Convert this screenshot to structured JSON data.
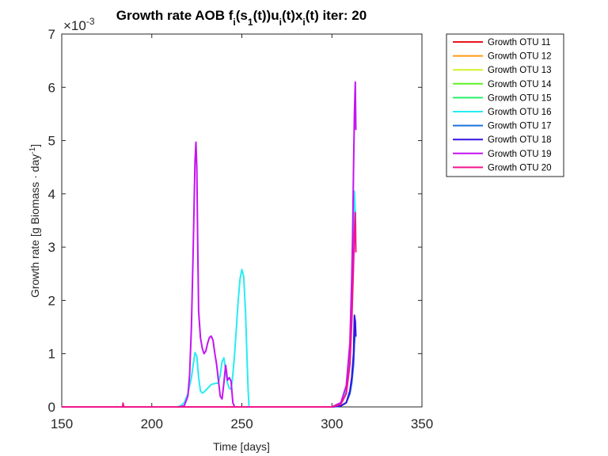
{
  "chart_data": {
    "type": "line",
    "title": {
      "parts": [
        {
          "t": "Growth rate AOB f",
          "sub": false
        },
        {
          "t": "i",
          "sub": true
        },
        {
          "t": "(s",
          "sub": false
        },
        {
          "t": "1",
          "sub": true
        },
        {
          "t": "(t))u",
          "sub": false
        },
        {
          "t": "i",
          "sub": true
        },
        {
          "t": "(t)x",
          "sub": false
        },
        {
          "t": "i",
          "sub": true
        },
        {
          "t": "(t) iter: 20",
          "sub": false
        }
      ]
    },
    "xlabel": "Time [days]",
    "ylabel": {
      "main": "Growth rate [g Biomass · day",
      "sup": "-1",
      "end": "]"
    },
    "xlim": [
      150,
      350
    ],
    "ylim": [
      0,
      7
    ],
    "xticks": [
      "150",
      "200",
      "250",
      "300",
      "350"
    ],
    "yticks": [
      "0",
      "1",
      "2",
      "3",
      "4",
      "5",
      "6",
      "7"
    ],
    "y_multiplier": {
      "base": "×10",
      "exp": "-3"
    },
    "legend_position": "outside-top-right",
    "series": [
      {
        "name": "Growth OTU 11",
        "color": "#e8141c",
        "x": [],
        "y": []
      },
      {
        "name": "Growth OTU 12",
        "color": "#ff9a10",
        "x": [],
        "y": []
      },
      {
        "name": "Growth OTU 13",
        "color": "#d2f229",
        "x": [],
        "y": []
      },
      {
        "name": "Growth OTU 14",
        "color": "#5cf227",
        "x": [],
        "y": []
      },
      {
        "name": "Growth OTU 15",
        "color": "#27f26a",
        "x": [],
        "y": []
      },
      {
        "name": "Growth OTU 16",
        "color": "#27ecf2",
        "x": [
          150,
          214,
          216,
          218,
          220,
          222,
          223,
          224,
          225,
          226,
          227,
          228,
          229,
          231,
          233,
          235,
          237,
          238,
          239,
          240,
          241,
          242,
          243,
          244,
          245,
          246,
          247,
          248,
          249,
          250,
          251,
          252,
          253,
          253.5,
          254,
          300,
          305,
          308,
          310,
          311,
          312,
          312.5,
          313
        ],
        "y": [
          0,
          0,
          0.02,
          0.08,
          0.25,
          0.55,
          0.8,
          1.02,
          0.95,
          0.55,
          0.3,
          0.26,
          0.28,
          0.35,
          0.42,
          0.44,
          0.45,
          0.6,
          0.85,
          0.92,
          0.7,
          0.45,
          0.35,
          0.33,
          0.6,
          1.0,
          1.5,
          2.0,
          2.4,
          2.58,
          2.45,
          1.8,
          0.8,
          0.3,
          0,
          0,
          0.08,
          0.3,
          1.0,
          2.0,
          3.2,
          4.05,
          3.6
        ]
      },
      {
        "name": "Growth OTU 17",
        "color": "#1a6fdf",
        "x": [
          150,
          300,
          305,
          308,
          310,
          311,
          312,
          312.5,
          313
        ],
        "y": [
          0,
          0,
          0.02,
          0.08,
          0.25,
          0.45,
          0.8,
          1.2,
          1.4
        ]
      },
      {
        "name": "Growth OTU 18",
        "color": "#3214e2",
        "x": [
          150,
          300,
          305,
          308,
          310,
          311,
          312,
          312.5,
          313,
          313.3
        ],
        "y": [
          0,
          0,
          0.02,
          0.08,
          0.3,
          0.55,
          1.0,
          1.72,
          1.6,
          1.32
        ]
      },
      {
        "name": "Growth OTU 19",
        "color": "#c414f2",
        "x": [
          150,
          215,
          218,
          220,
          221,
          222,
          223,
          224,
          224.5,
          225,
          225.5,
          226,
          227,
          228,
          229,
          230,
          231,
          232,
          233,
          234,
          235,
          236,
          237,
          238,
          239,
          240,
          241,
          241.5,
          242,
          243,
          244,
          245,
          246,
          300,
          305,
          308,
          310,
          311,
          311.5,
          312,
          312.5,
          313,
          313.3
        ],
        "y": [
          0,
          0,
          0.02,
          0.2,
          0.6,
          1.5,
          3.0,
          4.6,
          4.97,
          4.5,
          3.0,
          1.8,
          1.3,
          1.1,
          1.0,
          1.05,
          1.2,
          1.3,
          1.33,
          1.25,
          1.0,
          0.8,
          0.5,
          0.2,
          0.15,
          0.45,
          0.78,
          0.65,
          0.5,
          0.55,
          0.48,
          0.08,
          0,
          0,
          0.08,
          0.4,
          1.2,
          2.4,
          3.2,
          4.5,
          5.5,
          6.1,
          5.2
        ]
      },
      {
        "name": "Growth OTU 20",
        "color": "#f2148c",
        "x": [
          150,
          183.8,
          184,
          184.4,
          300,
          305,
          308,
          310,
          311,
          312,
          312.5,
          313,
          313.3
        ],
        "y": [
          0,
          0,
          0.07,
          0,
          0,
          0.05,
          0.25,
          0.8,
          1.6,
          2.7,
          3.3,
          3.65,
          2.9
        ]
      }
    ]
  }
}
